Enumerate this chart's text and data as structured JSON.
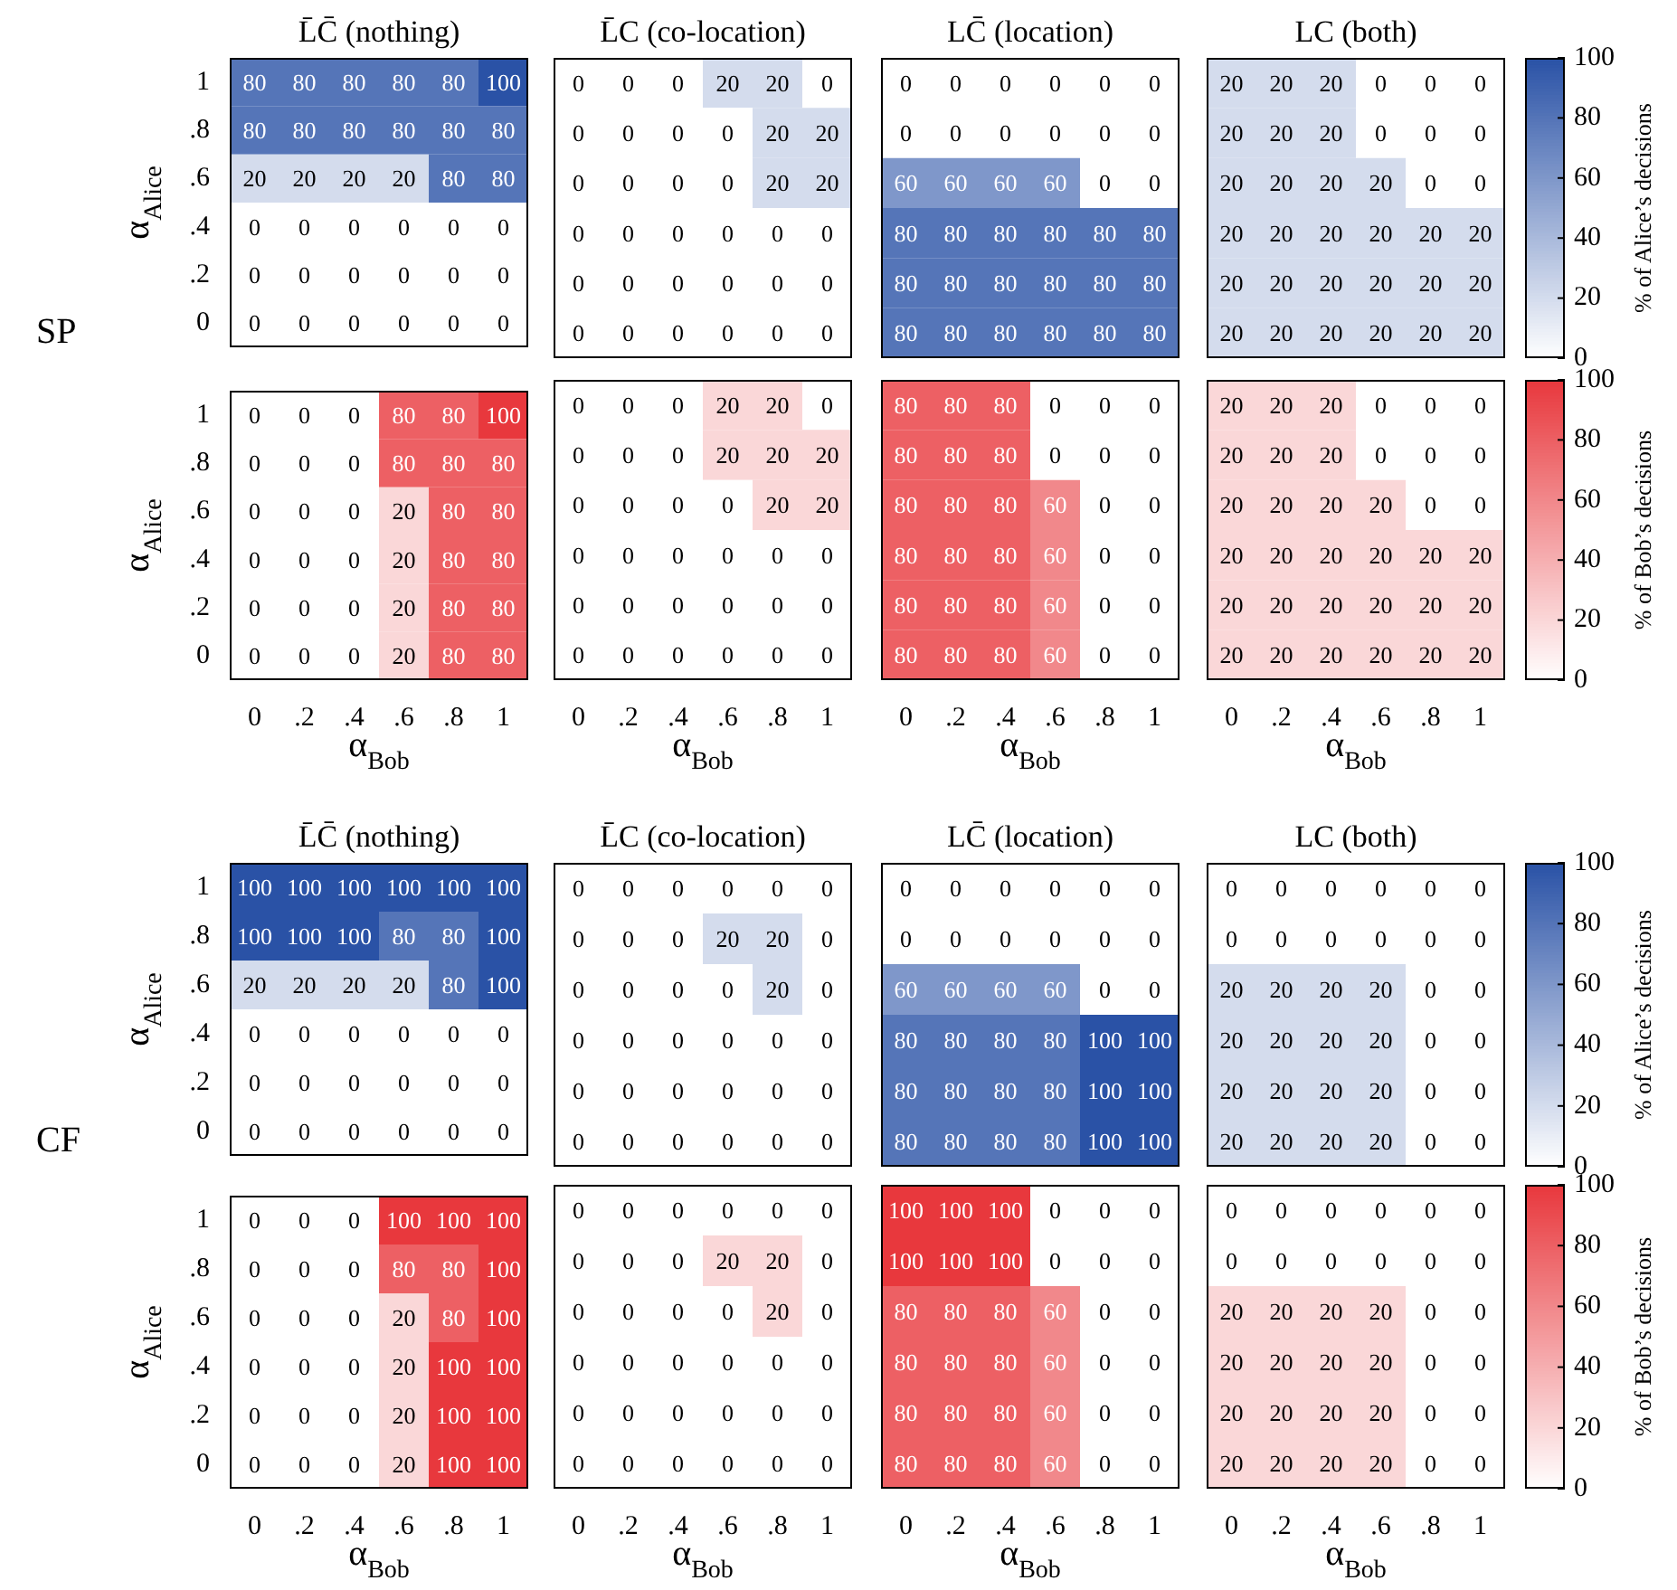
{
  "chart_data": [
    {
      "type": "heatmap",
      "title": "L̄C̄ (nothing)",
      "ylabel": "α$_{Alice}$",
      "annotations": [
        "SP"
      ],
      "tick_labels": "y",
      "color": "#2a52a6",
      "data_labels": true,
      "categories": [
        "0",
        ".2",
        ".4",
        ".6",
        ".8",
        "1"
      ],
      "y_categories": [
        "1",
        ".8",
        ".6",
        ".4",
        ".2",
        "0"
      ],
      "cells": [
        [
          80,
          80,
          80,
          80,
          80,
          100
        ],
        [
          80,
          80,
          80,
          80,
          80,
          80
        ],
        [
          20,
          20,
          20,
          20,
          80,
          80
        ],
        [
          0,
          0,
          0,
          0,
          0,
          0
        ],
        [
          0,
          0,
          0,
          0,
          0,
          0
        ],
        [
          0,
          0,
          0,
          0,
          0,
          0
        ]
      ]
    },
    {
      "type": "heatmap",
      "title": "L̄C (co-location)",
      "tick_labels": false,
      "color": "#2a52a6",
      "data_labels": true,
      "categories": [
        "0",
        ".2",
        ".4",
        ".6",
        ".8",
        "1"
      ],
      "y_categories": [
        "1",
        ".8",
        ".6",
        ".4",
        ".2",
        "0"
      ],
      "cells": [
        [
          0,
          0,
          0,
          20,
          20,
          0
        ],
        [
          0,
          0,
          0,
          0,
          20,
          20
        ],
        [
          0,
          0,
          0,
          0,
          20,
          20
        ],
        [
          0,
          0,
          0,
          0,
          0,
          0
        ],
        [
          0,
          0,
          0,
          0,
          0,
          0
        ],
        [
          0,
          0,
          0,
          0,
          0,
          0
        ]
      ]
    },
    {
      "type": "heatmap",
      "title": "LC̄ (location)",
      "tick_labels": false,
      "color": "#2a52a6",
      "data_labels": true,
      "categories": [
        "0",
        ".2",
        ".4",
        ".6",
        ".8",
        "1"
      ],
      "y_categories": [
        "1",
        ".8",
        ".6",
        ".4",
        ".2",
        "0"
      ],
      "cells": [
        [
          0,
          0,
          0,
          0,
          0,
          0
        ],
        [
          0,
          0,
          0,
          0,
          0,
          0
        ],
        [
          60,
          60,
          60,
          60,
          0,
          0
        ],
        [
          80,
          80,
          80,
          80,
          80,
          80
        ],
        [
          80,
          80,
          80,
          80,
          80,
          80
        ],
        [
          80,
          80,
          80,
          80,
          80,
          80
        ]
      ]
    },
    {
      "type": "heatmap",
      "title": "LC (both)",
      "clabel": "% of Alice’s decisions",
      "tick_labels": false,
      "color": "#2a52a6",
      "clim": [
        0,
        100
      ],
      "cticks": [
        0,
        20,
        40,
        60,
        80,
        100
      ],
      "data_labels": true,
      "categories": [
        "0",
        ".2",
        ".4",
        ".6",
        ".8",
        "1"
      ],
      "y_categories": [
        "1",
        ".8",
        ".6",
        ".4",
        ".2",
        "0"
      ],
      "cells": [
        [
          20,
          20,
          20,
          0,
          0,
          0
        ],
        [
          20,
          20,
          20,
          0,
          0,
          0
        ],
        [
          20,
          20,
          20,
          20,
          0,
          0
        ],
        [
          20,
          20,
          20,
          20,
          20,
          20
        ],
        [
          20,
          20,
          20,
          20,
          20,
          20
        ],
        [
          20,
          20,
          20,
          20,
          20,
          20
        ]
      ]
    },
    {
      "type": "heatmap",
      "xlabel": "α$_{Bob}$",
      "ylabel": "α$_{Alice}$",
      "color": "#e8383d",
      "data_labels": true,
      "categories": [
        "0",
        ".2",
        ".4",
        ".6",
        ".8",
        "1"
      ],
      "y_categories": [
        "1",
        ".8",
        ".6",
        ".4",
        ".2",
        "0"
      ],
      "cells": [
        [
          0,
          0,
          0,
          80,
          80,
          100
        ],
        [
          0,
          0,
          0,
          80,
          80,
          80
        ],
        [
          0,
          0,
          0,
          20,
          80,
          80
        ],
        [
          0,
          0,
          0,
          20,
          80,
          80
        ],
        [
          0,
          0,
          0,
          20,
          80,
          80
        ],
        [
          0,
          0,
          0,
          20,
          80,
          80
        ]
      ]
    },
    {
      "type": "heatmap",
      "xlabel": "α$_{Bob}$",
      "tick_labels": "x",
      "color": "#e8383d",
      "data_labels": true,
      "categories": [
        "0",
        ".2",
        ".4",
        ".6",
        ".8",
        "1"
      ],
      "y_categories": [
        "1",
        ".8",
        ".6",
        ".4",
        ".2",
        "0"
      ],
      "cells": [
        [
          0,
          0,
          0,
          20,
          20,
          0
        ],
        [
          0,
          0,
          0,
          20,
          20,
          20
        ],
        [
          0,
          0,
          0,
          0,
          20,
          20
        ],
        [
          0,
          0,
          0,
          0,
          0,
          0
        ],
        [
          0,
          0,
          0,
          0,
          0,
          0
        ],
        [
          0,
          0,
          0,
          0,
          0,
          0
        ]
      ]
    },
    {
      "type": "heatmap",
      "xlabel": "α$_{Bob}$",
      "tick_labels": "x",
      "color": "#e8383d",
      "data_labels": true,
      "categories": [
        "0",
        ".2",
        ".4",
        ".6",
        ".8",
        "1"
      ],
      "y_categories": [
        "1",
        ".8",
        ".6",
        ".4",
        ".2",
        "0"
      ],
      "cells": [
        [
          80,
          80,
          80,
          0,
          0,
          0
        ],
        [
          80,
          80,
          80,
          0,
          0,
          0
        ],
        [
          80,
          80,
          80,
          60,
          0,
          0
        ],
        [
          80,
          80,
          80,
          60,
          0,
          0
        ],
        [
          80,
          80,
          80,
          60,
          0,
          0
        ],
        [
          80,
          80,
          80,
          60,
          0,
          0
        ]
      ]
    },
    {
      "type": "heatmap",
      "xlabel": "α$_{Bob}$",
      "clabel": "% of Bob’s decisions",
      "tick_labels": "x",
      "color": "#e8383d",
      "clim": [
        0,
        100
      ],
      "cticks": [
        0,
        20,
        40,
        60,
        80,
        100
      ],
      "data_labels": true,
      "categories": [
        "0",
        ".2",
        ".4",
        ".6",
        ".8",
        "1"
      ],
      "y_categories": [
        "1",
        ".8",
        ".6",
        ".4",
        ".2",
        "0"
      ],
      "cells": [
        [
          20,
          20,
          20,
          0,
          0,
          0
        ],
        [
          20,
          20,
          20,
          0,
          0,
          0
        ],
        [
          20,
          20,
          20,
          20,
          0,
          0
        ],
        [
          20,
          20,
          20,
          20,
          20,
          20
        ],
        [
          20,
          20,
          20,
          20,
          20,
          20
        ],
        [
          20,
          20,
          20,
          20,
          20,
          20
        ]
      ]
    },
    {
      "type": "heatmap",
      "title": "L̄C̄ (nothing)",
      "ylabel": "α$_{Alice}$",
      "annotations": [
        "CF"
      ],
      "tick_labels": "y",
      "color": "#2a52a6",
      "data_labels": true,
      "categories": [
        "0",
        ".2",
        ".4",
        ".6",
        ".8",
        "1"
      ],
      "y_categories": [
        "1",
        ".8",
        ".6",
        ".4",
        ".2",
        "0"
      ],
      "cells": [
        [
          100,
          100,
          100,
          100,
          100,
          100
        ],
        [
          100,
          100,
          100,
          80,
          80,
          100
        ],
        [
          20,
          20,
          20,
          20,
          80,
          100
        ],
        [
          0,
          0,
          0,
          0,
          0,
          0
        ],
        [
          0,
          0,
          0,
          0,
          0,
          0
        ],
        [
          0,
          0,
          0,
          0,
          0,
          0
        ]
      ]
    },
    {
      "type": "heatmap",
      "title": "L̄C (co-location)",
      "tick_labels": false,
      "color": "#2a52a6",
      "data_labels": true,
      "categories": [
        "0",
        ".2",
        ".4",
        ".6",
        ".8",
        "1"
      ],
      "y_categories": [
        "1",
        ".8",
        ".6",
        ".4",
        ".2",
        "0"
      ],
      "cells": [
        [
          0,
          0,
          0,
          0,
          0,
          0
        ],
        [
          0,
          0,
          0,
          20,
          20,
          0
        ],
        [
          0,
          0,
          0,
          0,
          20,
          0
        ],
        [
          0,
          0,
          0,
          0,
          0,
          0
        ],
        [
          0,
          0,
          0,
          0,
          0,
          0
        ],
        [
          0,
          0,
          0,
          0,
          0,
          0
        ]
      ]
    },
    {
      "type": "heatmap",
      "title": "LC̄ (location)",
      "tick_labels": false,
      "color": "#2a52a6",
      "data_labels": true,
      "categories": [
        "0",
        ".2",
        ".4",
        ".6",
        ".8",
        "1"
      ],
      "y_categories": [
        "1",
        ".8",
        ".6",
        ".4",
        ".2",
        "0"
      ],
      "cells": [
        [
          0,
          0,
          0,
          0,
          0,
          0
        ],
        [
          0,
          0,
          0,
          0,
          0,
          0
        ],
        [
          60,
          60,
          60,
          60,
          0,
          0
        ],
        [
          80,
          80,
          80,
          80,
          100,
          100
        ],
        [
          80,
          80,
          80,
          80,
          100,
          100
        ],
        [
          80,
          80,
          80,
          80,
          100,
          100
        ]
      ]
    },
    {
      "type": "heatmap",
      "title": "LC (both)",
      "clabel": "% of Alice’s decisions",
      "tick_labels": false,
      "color": "#2a52a6",
      "clim": [
        0,
        100
      ],
      "cticks": [
        0,
        20,
        40,
        60,
        80,
        100
      ],
      "data_labels": true,
      "categories": [
        "0",
        ".2",
        ".4",
        ".6",
        ".8",
        "1"
      ],
      "y_categories": [
        "1",
        ".8",
        ".6",
        ".4",
        ".2",
        "0"
      ],
      "cells": [
        [
          0,
          0,
          0,
          0,
          0,
          0
        ],
        [
          0,
          0,
          0,
          0,
          0,
          0
        ],
        [
          20,
          20,
          20,
          20,
          0,
          0
        ],
        [
          20,
          20,
          20,
          20,
          0,
          0
        ],
        [
          20,
          20,
          20,
          20,
          0,
          0
        ],
        [
          20,
          20,
          20,
          20,
          0,
          0
        ]
      ]
    },
    {
      "type": "heatmap",
      "xlabel": "α$_{Bob}$",
      "ylabel": "α$_{Alice}$",
      "color": "#e8383d",
      "data_labels": true,
      "categories": [
        "0",
        ".2",
        ".4",
        ".6",
        ".8",
        "1"
      ],
      "y_categories": [
        "1",
        ".8",
        ".6",
        ".4",
        ".2",
        "0"
      ],
      "cells": [
        [
          0,
          0,
          0,
          100,
          100,
          100
        ],
        [
          0,
          0,
          0,
          80,
          80,
          100
        ],
        [
          0,
          0,
          0,
          20,
          80,
          100
        ],
        [
          0,
          0,
          0,
          20,
          100,
          100
        ],
        [
          0,
          0,
          0,
          20,
          100,
          100
        ],
        [
          0,
          0,
          0,
          20,
          100,
          100
        ]
      ]
    },
    {
      "type": "heatmap",
      "xlabel": "α$_{Bob}$",
      "tick_labels": "x",
      "color": "#e8383d",
      "data_labels": true,
      "categories": [
        "0",
        ".2",
        ".4",
        ".6",
        ".8",
        "1"
      ],
      "y_categories": [
        "1",
        ".8",
        ".6",
        ".4",
        ".2",
        "0"
      ],
      "cells": [
        [
          0,
          0,
          0,
          0,
          0,
          0
        ],
        [
          0,
          0,
          0,
          20,
          20,
          0
        ],
        [
          0,
          0,
          0,
          0,
          20,
          0
        ],
        [
          0,
          0,
          0,
          0,
          0,
          0
        ],
        [
          0,
          0,
          0,
          0,
          0,
          0
        ],
        [
          0,
          0,
          0,
          0,
          0,
          0
        ]
      ]
    },
    {
      "type": "heatmap",
      "xlabel": "α$_{Bob}$",
      "tick_labels": "x",
      "color": "#e8383d",
      "data_labels": true,
      "categories": [
        "0",
        ".2",
        ".4",
        ".6",
        ".8",
        "1"
      ],
      "y_categories": [
        "1",
        ".8",
        ".6",
        ".4",
        ".2",
        "0"
      ],
      "cells": [
        [
          100,
          100,
          100,
          0,
          0,
          0
        ],
        [
          100,
          100,
          100,
          0,
          0,
          0
        ],
        [
          80,
          80,
          80,
          60,
          0,
          0
        ],
        [
          80,
          80,
          80,
          60,
          0,
          0
        ],
        [
          80,
          80,
          80,
          60,
          0,
          0
        ],
        [
          80,
          80,
          80,
          60,
          0,
          0
        ]
      ]
    },
    {
      "type": "heatmap",
      "xlabel": "α$_{Bob}$",
      "clabel": "% of Bob’s decisions",
      "tick_labels": "x",
      "color": "#e8383d",
      "clim": [
        0,
        100
      ],
      "cticks": [
        0,
        20,
        40,
        60,
        80,
        100
      ],
      "data_labels": true,
      "categories": [
        "0",
        ".2",
        ".4",
        ".6",
        ".8",
        "1"
      ],
      "y_categories": [
        "1",
        ".8",
        ".6",
        ".4",
        ".2",
        "0"
      ],
      "cells": [
        [
          0,
          0,
          0,
          0,
          0,
          0
        ],
        [
          0,
          0,
          0,
          0,
          0,
          0
        ],
        [
          20,
          20,
          20,
          20,
          0,
          0
        ],
        [
          20,
          20,
          20,
          20,
          0,
          0
        ],
        [
          20,
          20,
          20,
          20,
          0,
          0
        ],
        [
          20,
          20,
          20,
          20,
          0,
          0
        ]
      ]
    }
  ]
}
